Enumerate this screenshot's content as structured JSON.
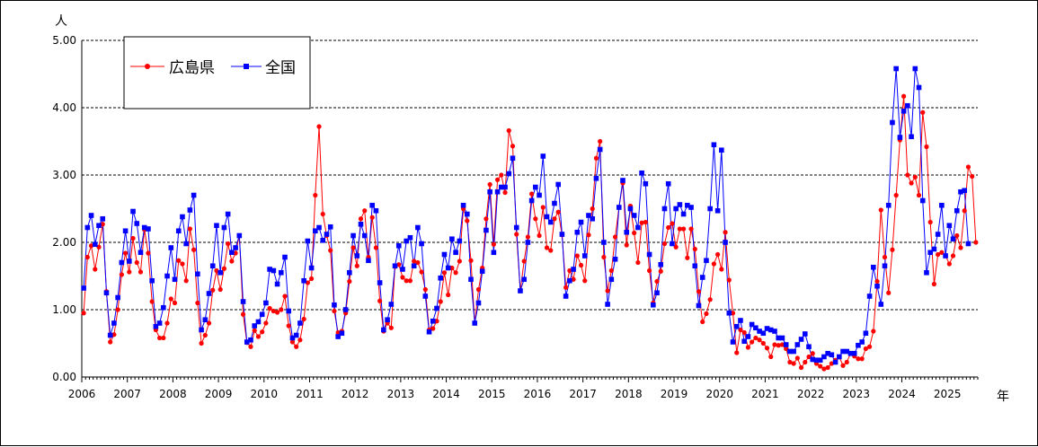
{
  "chart_data": {
    "type": "line",
    "title": "",
    "ylabel": "人",
    "xlabel": "年",
    "ylim": [
      0,
      5
    ],
    "yticks": [
      "0.00",
      "1.00",
      "2.00",
      "3.00",
      "4.00",
      "5.00"
    ],
    "grid": "horizontal dashed",
    "legend_position": "top-left",
    "year_labels": [
      "2006",
      "2007",
      "2008",
      "2009",
      "2010",
      "2011",
      "2012",
      "2013",
      "2014",
      "2015",
      "2016",
      "2017",
      "2018",
      "2019",
      "2020",
      "2021",
      "2022",
      "2023",
      "2024",
      "2025"
    ],
    "x_start": "2006-01",
    "x_end": "2025-08",
    "series": [
      {
        "name": "広島県",
        "color": "#ff0000",
        "values": [
          0.95,
          1.78,
          1.95,
          1.6,
          1.93,
          2.27,
          1.27,
          0.52,
          0.63,
          1.0,
          1.52,
          1.84,
          1.56,
          2.06,
          1.7,
          1.56,
          2.19,
          1.84,
          1.12,
          0.7,
          0.58,
          0.58,
          0.8,
          1.16,
          1.1,
          1.73,
          1.68,
          1.43,
          2.2,
          1.89,
          1.1,
          0.5,
          0.62,
          0.8,
          1.29,
          1.58,
          1.3,
          1.61,
          1.98,
          1.72,
          1.84,
          2.1,
          0.93,
          0.51,
          0.45,
          0.69,
          0.6,
          0.67,
          0.8,
          1.02,
          0.98,
          0.96,
          1.0,
          1.2,
          0.76,
          0.52,
          0.45,
          0.55,
          0.86,
          1.4,
          1.46,
          2.7,
          3.72,
          2.42,
          2.1,
          1.88,
          0.98,
          0.66,
          0.68,
          0.95,
          1.42,
          1.92,
          1.65,
          2.35,
          2.47,
          1.78,
          2.37,
          1.92,
          1.13,
          0.68,
          0.8,
          0.73,
          1.64,
          1.67,
          1.48,
          1.43,
          1.43,
          1.72,
          1.7,
          1.56,
          1.3,
          0.7,
          0.72,
          0.83,
          1.12,
          1.55,
          1.22,
          1.62,
          1.55,
          1.72,
          2.5,
          2.32,
          1.73,
          0.8,
          1.3,
          1.62,
          2.35,
          2.86,
          1.97,
          2.93,
          3.0,
          2.74,
          3.66,
          3.43,
          2.12,
          1.28,
          1.72,
          2.08,
          2.72,
          2.35,
          2.1,
          2.52,
          1.92,
          1.88,
          2.35,
          2.45,
          2.11,
          1.33,
          1.58,
          1.45,
          1.8,
          1.66,
          1.43,
          2.11,
          2.5,
          3.25,
          3.5,
          1.78,
          1.28,
          1.58,
          2.08,
          2.52,
          2.88,
          1.96,
          2.54,
          2.14,
          1.7,
          2.29,
          2.3,
          1.58,
          1.1,
          1.42,
          1.57,
          1.98,
          2.22,
          2.28,
          1.93,
          2.2,
          2.2,
          1.77,
          2.2,
          1.9,
          1.27,
          0.82,
          0.94,
          1.15,
          1.68,
          1.82,
          1.6,
          2.15,
          1.44,
          0.95,
          0.36,
          0.7,
          0.66,
          0.44,
          0.52,
          0.58,
          0.55,
          0.5,
          0.43,
          0.3,
          0.48,
          0.47,
          0.48,
          0.42,
          0.22,
          0.2,
          0.28,
          0.14,
          0.22,
          0.3,
          0.35,
          0.2,
          0.16,
          0.12,
          0.14,
          0.2,
          0.25,
          0.3,
          0.17,
          0.22,
          0.35,
          0.31,
          0.27,
          0.27,
          0.42,
          0.45,
          0.68,
          1.42,
          2.48,
          1.78,
          1.25,
          1.89,
          2.7,
          3.52,
          4.17,
          3.0,
          2.88,
          2.97,
          2.7,
          3.93,
          3.42,
          2.3,
          1.38,
          1.82,
          1.85,
          1.8,
          1.68,
          1.8,
          2.1,
          1.92,
          2.47,
          3.12,
          2.98,
          2.0
        ]
      },
      {
        "name": "全国",
        "color": "#0000ff",
        "values": [
          1.32,
          2.22,
          2.4,
          1.97,
          2.25,
          2.35,
          1.25,
          0.62,
          0.8,
          1.18,
          1.7,
          2.17,
          1.72,
          2.46,
          2.28,
          1.85,
          2.22,
          2.2,
          1.43,
          0.75,
          0.8,
          1.03,
          1.5,
          1.92,
          1.45,
          2.17,
          2.38,
          1.98,
          2.48,
          2.7,
          1.53,
          0.7,
          0.85,
          1.24,
          1.65,
          2.25,
          1.55,
          2.22,
          2.42,
          1.85,
          1.92,
          2.1,
          1.12,
          0.52,
          0.55,
          0.76,
          0.82,
          0.93,
          1.1,
          1.6,
          1.58,
          1.38,
          1.55,
          1.78,
          0.98,
          0.58,
          0.62,
          0.8,
          1.43,
          2.02,
          1.62,
          2.17,
          2.22,
          2.03,
          2.12,
          2.23,
          1.07,
          0.6,
          0.65,
          1.0,
          1.55,
          2.1,
          1.8,
          2.27,
          2.1,
          1.73,
          2.55,
          2.47,
          1.4,
          0.7,
          0.85,
          1.08,
          1.65,
          1.95,
          1.6,
          2.02,
          2.07,
          1.65,
          2.22,
          1.98,
          1.2,
          0.67,
          0.83,
          1.02,
          1.47,
          1.82,
          1.62,
          2.05,
          1.85,
          2.02,
          2.55,
          2.42,
          1.45,
          0.8,
          1.1,
          1.57,
          2.18,
          2.75,
          1.85,
          2.75,
          2.82,
          2.82,
          3.02,
          3.25,
          2.22,
          1.28,
          1.45,
          2.0,
          2.62,
          2.82,
          2.7,
          3.28,
          2.38,
          2.3,
          2.58,
          2.86,
          2.12,
          1.2,
          1.43,
          1.6,
          2.15,
          2.3,
          1.8,
          2.4,
          2.35,
          2.95,
          3.38,
          2.0,
          1.08,
          1.45,
          1.75,
          2.52,
          2.92,
          2.15,
          2.5,
          2.4,
          2.22,
          3.03,
          2.87,
          1.82,
          1.07,
          1.25,
          1.67,
          2.5,
          2.87,
          1.98,
          2.5,
          2.56,
          2.42,
          2.55,
          2.52,
          1.65,
          1.06,
          1.48,
          1.73,
          2.5,
          3.45,
          2.47,
          3.37,
          2.0,
          0.95,
          0.52,
          0.75,
          0.84,
          0.53,
          0.6,
          0.78,
          0.73,
          0.68,
          0.65,
          0.72,
          0.7,
          0.68,
          0.58,
          0.58,
          0.48,
          0.38,
          0.38,
          0.48,
          0.56,
          0.64,
          0.45,
          0.26,
          0.25,
          0.25,
          0.3,
          0.35,
          0.33,
          0.22,
          0.3,
          0.38,
          0.38,
          0.35,
          0.35,
          0.47,
          0.52,
          0.65,
          1.2,
          1.63,
          1.35,
          1.08,
          1.65,
          2.55,
          3.78,
          4.58,
          3.56,
          3.95,
          4.03,
          3.57,
          4.58,
          4.3,
          2.62,
          1.55,
          1.85,
          1.9,
          2.12,
          2.55,
          1.8,
          2.25,
          2.05,
          2.47,
          2.75,
          2.77,
          1.98
        ]
      }
    ]
  }
}
